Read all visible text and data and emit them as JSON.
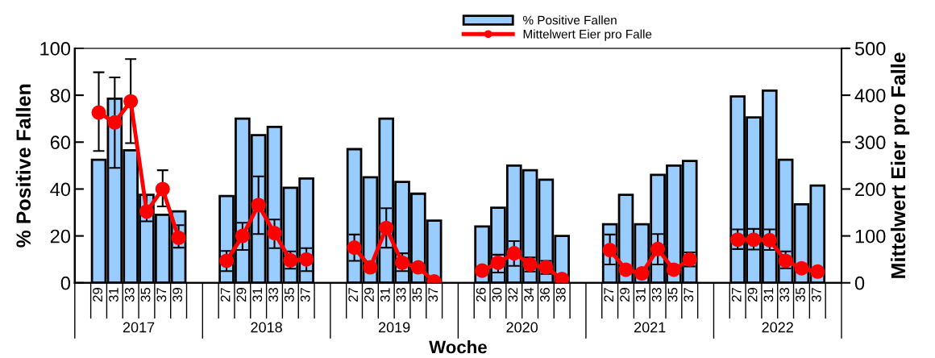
{
  "chart_data": {
    "type": "bar",
    "xlabel": "Woche",
    "ylabel": "% Positive Fallen",
    "y2label": "Mittelwert Eier pro Falle",
    "categories": [
      null,
      "29",
      "31",
      "33",
      "35",
      "37",
      "39",
      null,
      null,
      "27",
      "29",
      "31",
      "33",
      "35",
      "37",
      null,
      null,
      "27",
      "29",
      "31",
      "33",
      "35",
      "37",
      null,
      null,
      "26",
      "30",
      "32",
      "34",
      "36",
      "38",
      null,
      null,
      "27",
      "29",
      "31",
      "33",
      "35",
      "37",
      null,
      null,
      "27",
      "29",
      "31",
      "33",
      "35",
      "37",
      null
    ],
    "annotations": [
      "2017",
      "2018",
      "2019",
      "2020",
      "2021",
      "2022"
    ],
    "series": [
      {
        "name": "% Positive Fallen",
        "color": "#99ccff",
        "values": [
          null,
          52.5,
          78.5,
          56.5,
          37.5,
          29,
          30.5,
          null,
          null,
          37,
          70,
          63,
          66.5,
          40.5,
          44.5,
          null,
          null,
          57,
          45,
          70,
          43,
          38,
          26.5,
          null,
          null,
          24,
          32,
          50,
          48,
          44,
          20,
          null,
          null,
          25,
          37.5,
          25,
          46,
          50,
          52,
          null,
          null,
          79.5,
          70.5,
          82,
          52.5,
          33.5,
          41.5,
          null
        ]
      },
      {
        "name": "Mittelwert Eier pro Falle",
        "type": "line",
        "axis": "y2",
        "color": "#ff0000",
        "marker": "circle",
        "line_style": "solid",
        "values": [
          null,
          363,
          342,
          387,
          152,
          200,
          96,
          null,
          null,
          47,
          100,
          166,
          106,
          48,
          50,
          null,
          null,
          75,
          33,
          117,
          43,
          33,
          3,
          null,
          null,
          26,
          43,
          63,
          39,
          33,
          8,
          null,
          null,
          70,
          28,
          20,
          72,
          28,
          50,
          null,
          null,
          92,
          92,
          91,
          47,
          31,
          24,
          null
        ],
        "errors": [
          null,
          [
            281,
            449
          ],
          [
            245,
            438
          ],
          [
            298,
            477
          ],
          [
            131,
            187
          ],
          [
            163,
            240
          ],
          [
            75,
            123
          ],
          null,
          null,
          [
            25,
            68
          ],
          [
            70,
            128
          ],
          [
            104,
            227
          ],
          [
            74,
            135
          ],
          [
            30,
            67
          ],
          [
            25,
            74
          ],
          null,
          null,
          [
            47,
            103
          ],
          null,
          [
            75,
            159
          ],
          [
            25,
            63
          ],
          null,
          null,
          null,
          null,
          null,
          [
            22,
            60
          ],
          [
            36,
            89
          ],
          [
            24,
            54
          ],
          [
            19,
            47
          ],
          null,
          null,
          null,
          [
            39,
            103
          ],
          null,
          null,
          [
            39,
            104
          ],
          null,
          [
            35,
            65
          ],
          null,
          null,
          [
            72,
            114
          ],
          [
            71,
            115
          ],
          [
            70,
            114
          ],
          [
            31,
            67
          ],
          null,
          null,
          null
        ]
      }
    ],
    "ylim": [
      0,
      100
    ],
    "yticks": [
      0,
      20,
      40,
      60,
      80,
      100
    ],
    "y2lim": [
      0,
      500
    ],
    "y2ticks": [
      0,
      100,
      200,
      300,
      400,
      500
    ],
    "grid": false,
    "legend": "top"
  }
}
